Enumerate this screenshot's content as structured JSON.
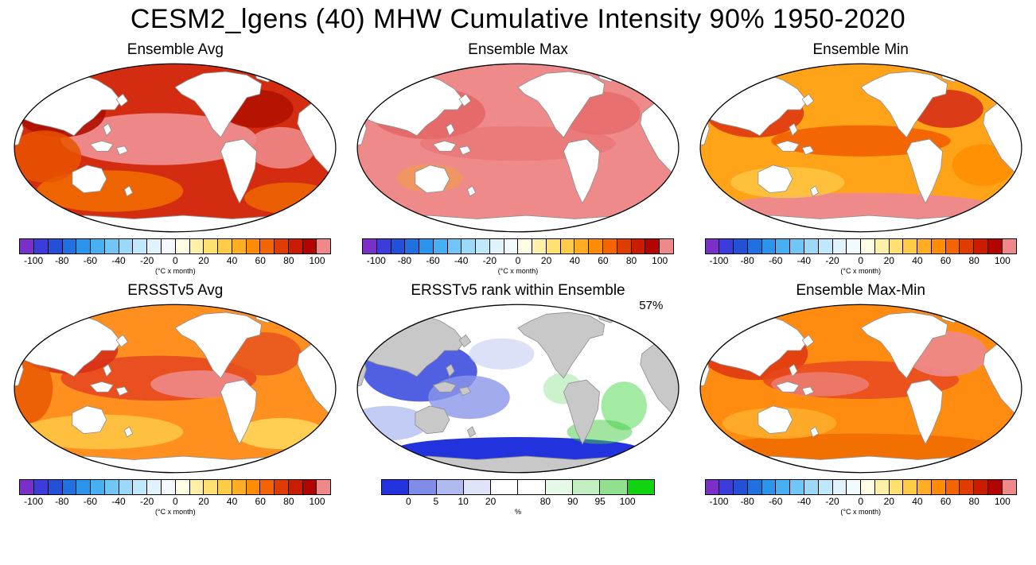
{
  "figure_title": "CESM2_lgens (40) MHW Cumulative Intensity 90% 1950-2020",
  "panels": [
    {
      "id": "ens_avg",
      "title": "Ensemble Avg",
      "colorbar": "intensity"
    },
    {
      "id": "ens_max",
      "title": "Ensemble Max",
      "colorbar": "intensity"
    },
    {
      "id": "ens_min",
      "title": "Ensemble Min",
      "colorbar": "intensity"
    },
    {
      "id": "ersst_avg",
      "title": "ERSSTv5 Avg",
      "colorbar": "intensity"
    },
    {
      "id": "ersst_rank",
      "title": "ERSSTv5 rank within Ensemble",
      "colorbar": "rank",
      "annotation": "57%"
    },
    {
      "id": "ens_maxmin",
      "title": "Ensemble Max-Min",
      "colorbar": "intensity"
    }
  ],
  "colorbars": {
    "intensity": {
      "unit": "(°C x month)",
      "colors": [
        "#7a2fc8",
        "#3c3cdc",
        "#2450d8",
        "#2070e0",
        "#2c94ea",
        "#48b0f0",
        "#70c6f5",
        "#9cd8f8",
        "#c0e8fb",
        "#e0f2fc",
        "#f2fafe",
        "#fffce4",
        "#fff0a8",
        "#ffe070",
        "#ffcc48",
        "#ffae24",
        "#ff8c04",
        "#f46400",
        "#e03c00",
        "#cc1c00",
        "#b20400",
        "#ef8888"
      ],
      "ticks": [
        {
          "label": "-100",
          "boundary": 1
        },
        {
          "label": "-80",
          "boundary": 3
        },
        {
          "label": "-60",
          "boundary": 5
        },
        {
          "label": "-40",
          "boundary": 7
        },
        {
          "label": "-20",
          "boundary": 9
        },
        {
          "label": "0",
          "boundary": 11
        },
        {
          "label": "20",
          "boundary": 13
        },
        {
          "label": "40",
          "boundary": 15
        },
        {
          "label": "60",
          "boundary": 17
        },
        {
          "label": "80",
          "boundary": 19
        },
        {
          "label": "100",
          "boundary": 21
        }
      ]
    },
    "rank": {
      "unit": "%",
      "colors": [
        "#2233dd",
        "#7f8ce8",
        "#b0baf0",
        "#e0e4f8",
        "#ffffff",
        "#ffffff",
        "#e6f8e6",
        "#c2eec2",
        "#90e090",
        "#12d312"
      ],
      "ticks": [
        {
          "label": "0",
          "boundary": 1
        },
        {
          "label": "5",
          "boundary": 2
        },
        {
          "label": "10",
          "boundary": 3
        },
        {
          "label": "20",
          "boundary": 4
        },
        {
          "label": "80",
          "boundary": 6
        },
        {
          "label": "90",
          "boundary": 7
        },
        {
          "label": "95",
          "boundary": 8
        },
        {
          "label": "100",
          "boundary": 9
        }
      ]
    }
  },
  "chart_data": {
    "type": "heatmap",
    "layout": "2 rows x 3 columns of Pacific-centered Robinson-projection world maps",
    "title": "CESM2_lgens (40) MHW Cumulative Intensity 90% 1950-2020",
    "panels": [
      "Ensemble Avg",
      "Ensemble Max",
      "Ensemble Min",
      "ERSSTv5 Avg",
      "ERSSTv5 rank within Ensemble",
      "Ensemble Max-Min"
    ],
    "intensity_colorbar": {
      "tick_values": [
        -100,
        -80,
        -60,
        -40,
        -20,
        0,
        20,
        40,
        60,
        80,
        100
      ],
      "unit": "(°C x month)",
      "range_per_cell": 10,
      "palette": "purple-blue-cyan-white-yellow-orange-red-salmon"
    },
    "rank_colorbar": {
      "tick_values": [
        0,
        5,
        10,
        20,
        80,
        90,
        95,
        100
      ],
      "unit": "%",
      "palette": "blue-white-green"
    },
    "annotations": [
      {
        "panel": "ERSSTv5 rank within Ensemble",
        "text": "57%"
      }
    ],
    "qualitative_values": {
      "Ensemble Avg": "ocean mostly 80-110 °C x month (dark red) with >100 salmon band in tropical Pacific/Atlantic, 50-80 orange in Indian & Southern Ocean",
      "Ensemble Max": "nearly uniform >100 (salmon) everywhere",
      "Ensemble Min": "mostly 40-70 (orange) with 70-100 red patches in NW Pacific/N Atlantic and >100 salmon Southern Ocean band",
      "ERSSTv5 Avg": "mixed 40-100 orange/red, >100 salmon equatorial band, 20-40 yellow Southern Ocean",
      "ERSSTv5 rank within Ensemble": "mostly 0-20% (blue/periwinkle) in western Pacific & Southern Ocean, white 20-80% elsewhere, scattered 80-100% green in Atlantic/E Pacific; land/no-data gray",
      "Ensemble Max-Min": "mostly 50-90 orange/red with >100 salmon in N Atlantic and tropics"
    }
  }
}
